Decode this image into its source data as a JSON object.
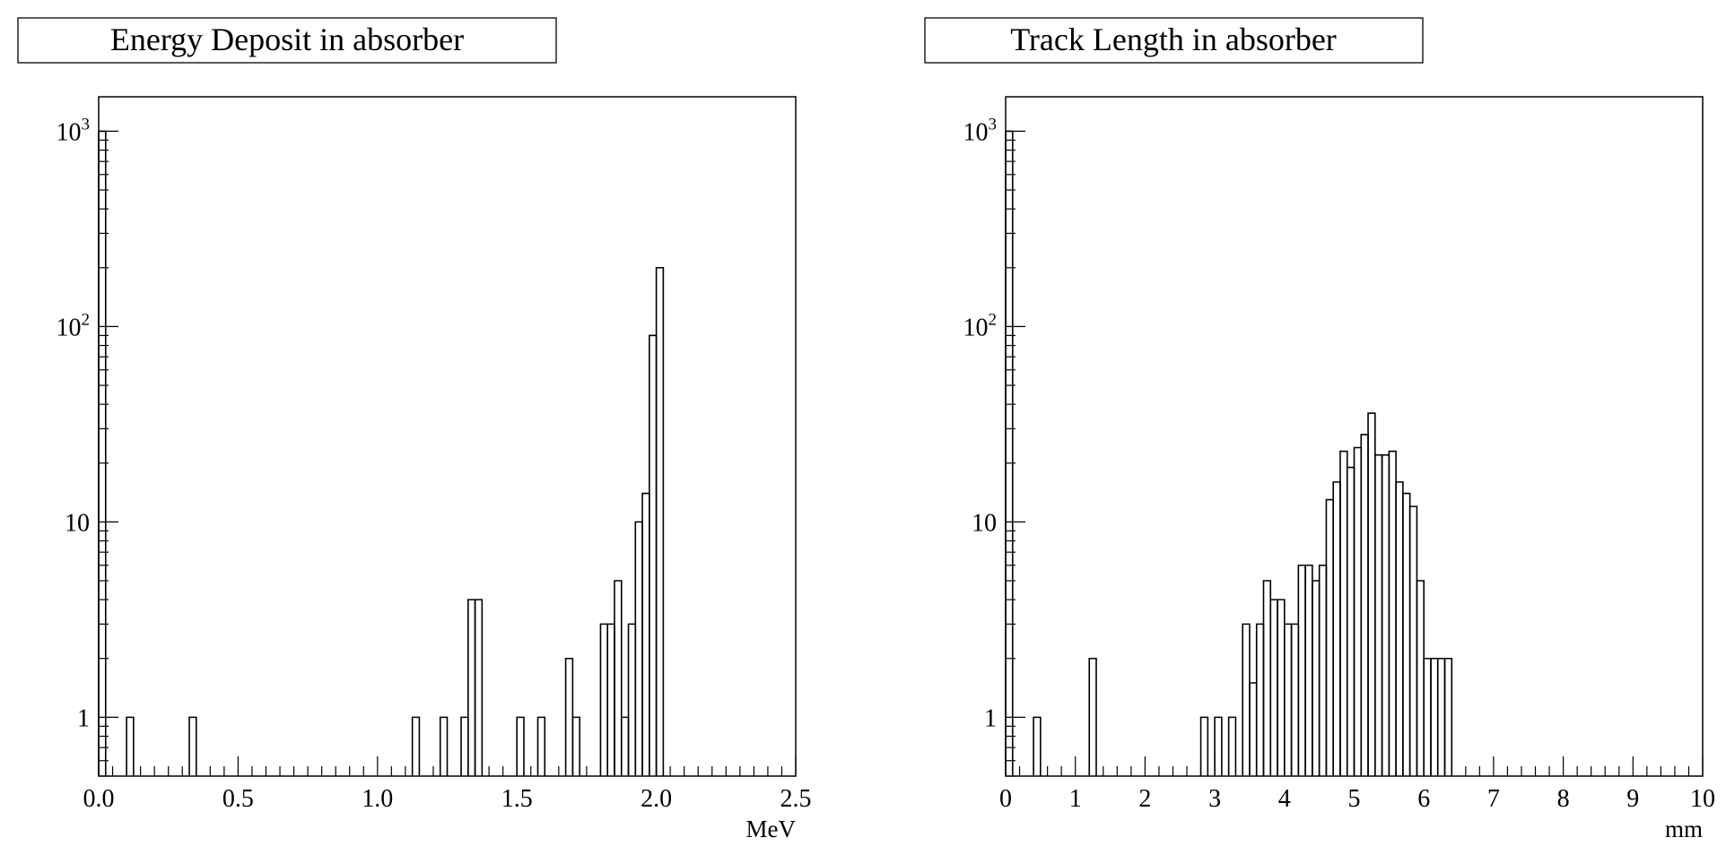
{
  "chart_data": [
    {
      "type": "histogram",
      "title": "Energy Deposit in absorber",
      "xlabel": "MeV",
      "ylabel": "",
      "xlim": [
        0.0,
        2.5
      ],
      "ylim": [
        0.5,
        1500
      ],
      "yscale": "log",
      "grid": false,
      "legend": "none",
      "x_tick_labels": [
        "0.0",
        "0.5",
        "1.0",
        "1.5",
        "2.0",
        "2.5"
      ],
      "y_tick_labels": [
        {
          "base": "1",
          "exp": ""
        },
        {
          "base": "10",
          "exp": ""
        },
        {
          "base": "10",
          "exp": "2"
        },
        {
          "base": "10",
          "exp": "3"
        }
      ],
      "bin_width": 0.025,
      "bin_starts": [
        0.0,
        0.1,
        0.325,
        1.125,
        1.225,
        1.3,
        1.325,
        1.35,
        1.5,
        1.575,
        1.675,
        1.7,
        1.8,
        1.825,
        1.85,
        1.875,
        1.9,
        1.925,
        1.95,
        1.975,
        2.0
      ],
      "counts": [
        1000,
        1,
        1,
        1,
        1,
        1,
        4,
        4,
        1,
        1,
        2,
        1,
        3,
        3,
        5,
        1,
        3,
        10,
        14,
        90,
        200
      ]
    },
    {
      "type": "histogram",
      "title": "Track Length in absorber",
      "xlabel": "mm",
      "ylabel": "",
      "xlim": [
        0,
        10
      ],
      "ylim": [
        0.5,
        1500
      ],
      "yscale": "log",
      "grid": false,
      "legend": "none",
      "x_tick_labels": [
        "0",
        "1",
        "2",
        "3",
        "4",
        "5",
        "6",
        "7",
        "8",
        "9",
        "10"
      ],
      "y_tick_labels": [
        {
          "base": "1",
          "exp": ""
        },
        {
          "base": "10",
          "exp": ""
        },
        {
          "base": "10",
          "exp": "2"
        },
        {
          "base": "10",
          "exp": "3"
        }
      ],
      "bin_width": 0.1,
      "bin_starts": [
        0.0,
        0.4,
        1.2,
        2.8,
        3.0,
        3.2,
        3.4,
        3.5,
        3.6,
        3.7,
        3.8,
        3.9,
        4.0,
        4.1,
        4.2,
        4.3,
        4.4,
        4.5,
        4.6,
        4.7,
        4.8,
        4.9,
        5.0,
        5.1,
        5.2,
        5.3,
        5.4,
        5.5,
        5.6,
        5.7,
        5.8,
        5.9,
        6.0,
        6.1,
        6.2,
        6.3
      ],
      "counts": [
        1000,
        1,
        2,
        1,
        1,
        1,
        3,
        1.5,
        3,
        5,
        4,
        4,
        3,
        3,
        6,
        6,
        5,
        6,
        13,
        16,
        23,
        19,
        24,
        28,
        36,
        22,
        22,
        23,
        16,
        14,
        12,
        5,
        2,
        2,
        2,
        2
      ]
    }
  ]
}
